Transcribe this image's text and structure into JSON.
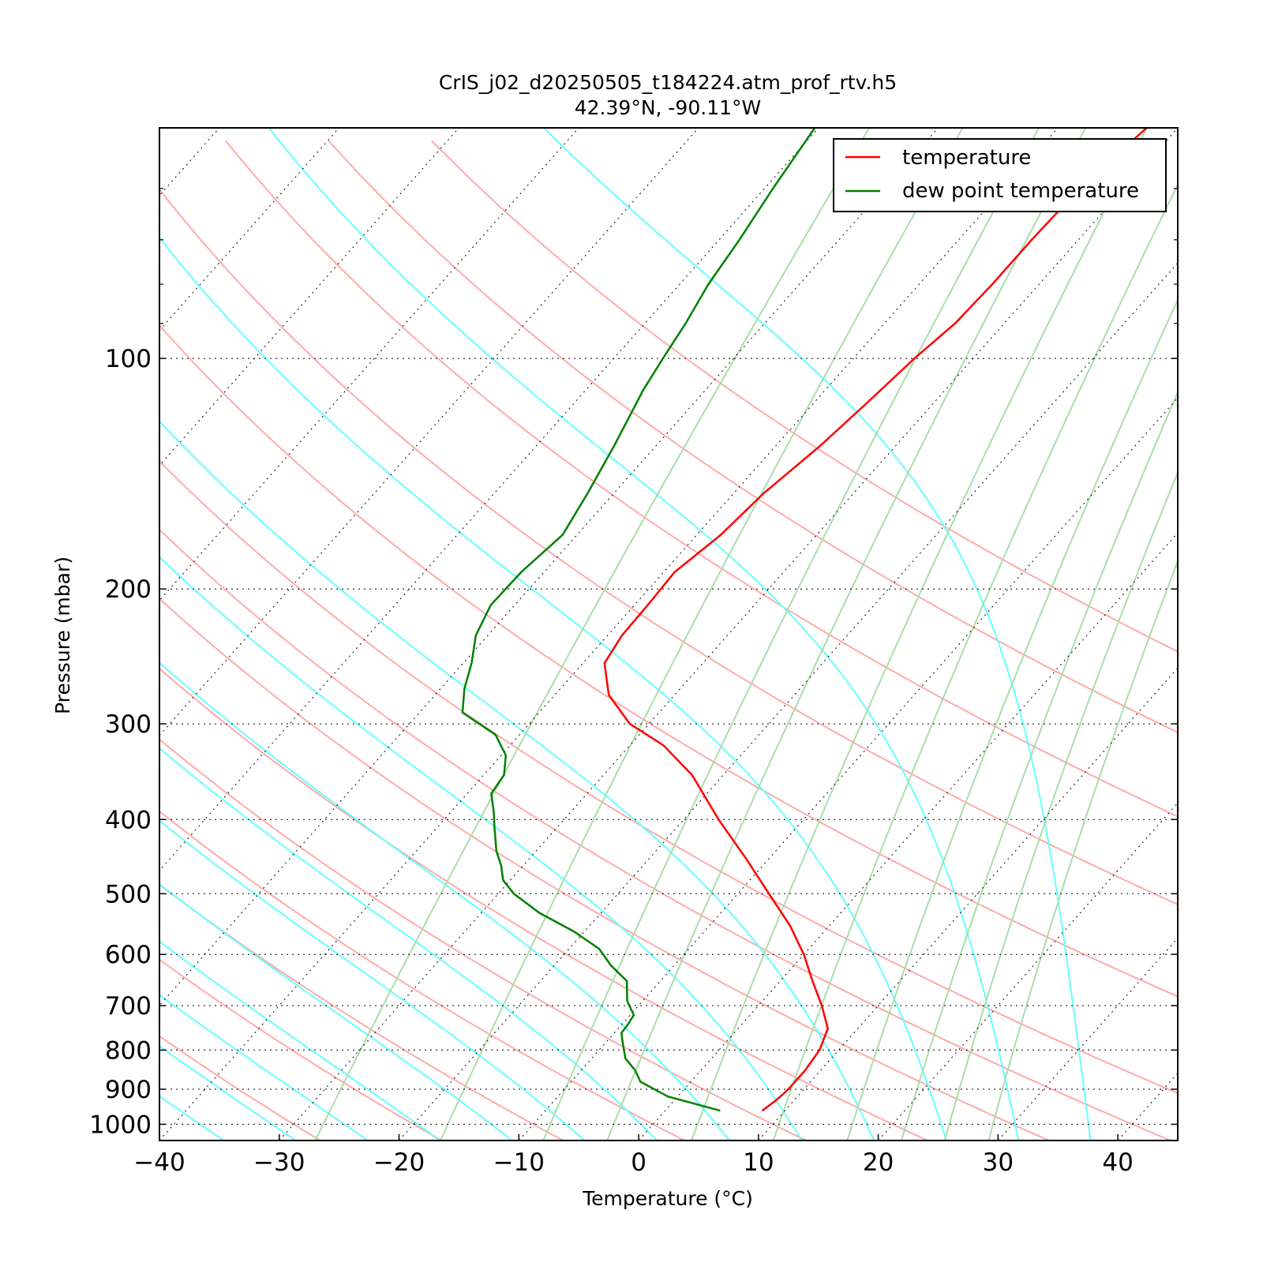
{
  "chart_data": {
    "type": "line",
    "title": "CrIS_j02_d20250505_t184224.atm_prof_rtv.h5",
    "subtitle": "42.39°N, -90.11°W",
    "xlabel": "Temperature (°C)",
    "ylabel": "Pressure (mbar)",
    "xlim": [
      -40,
      45
    ],
    "ylim": [
      1050,
      50
    ],
    "y_scale": "log",
    "skew": "skew-T log-P",
    "x_ticks": [
      "−40",
      "−30",
      "−20",
      "−10",
      "0",
      "10",
      "20",
      "30",
      "40"
    ],
    "x_tick_values": [
      -40,
      -30,
      -20,
      -10,
      0,
      10,
      20,
      30,
      40
    ],
    "y_ticks": [
      "100",
      "200",
      "300",
      "400",
      "500",
      "600",
      "700",
      "800",
      "900",
      "1000"
    ],
    "y_tick_values": [
      100,
      200,
      300,
      400,
      500,
      600,
      700,
      800,
      900,
      1000
    ],
    "grid": true,
    "legend_position": "top-right",
    "series": [
      {
        "name": "temperature",
        "color": "#ff0000",
        "points": [
          [
            960,
            8.1
          ],
          [
            930,
            8.5
          ],
          [
            900,
            8.7
          ],
          [
            850,
            8.7
          ],
          [
            800,
            8.4
          ],
          [
            750,
            7.5
          ],
          [
            700,
            5.3
          ],
          [
            650,
            2.7
          ],
          [
            600,
            0.0
          ],
          [
            550,
            -3.3
          ],
          [
            500,
            -7.4
          ],
          [
            450,
            -11.9
          ],
          [
            400,
            -17.1
          ],
          [
            350,
            -22.6
          ],
          [
            320,
            -27.2
          ],
          [
            300,
            -31.6
          ],
          [
            275,
            -35.5
          ],
          [
            250,
            -38.2
          ],
          [
            230,
            -38.8
          ],
          [
            210,
            -38.9
          ],
          [
            190,
            -39.1
          ],
          [
            170,
            -38.0
          ],
          [
            150,
            -37.5
          ],
          [
            130,
            -36.3
          ],
          [
            115,
            -35.6
          ],
          [
            100,
            -34.9
          ],
          [
            90,
            -34.1
          ],
          [
            80,
            -33.9
          ],
          [
            70,
            -33.9
          ],
          [
            60,
            -33.7
          ],
          [
            50,
            -32.6
          ]
        ]
      },
      {
        "name": "dew point temperature",
        "color": "#008000",
        "points": [
          [
            960,
            4.6
          ],
          [
            920,
            -0.8
          ],
          [
            880,
            -4.2
          ],
          [
            850,
            -5.5
          ],
          [
            820,
            -7.2
          ],
          [
            790,
            -8.3
          ],
          [
            760,
            -9.4
          ],
          [
            740,
            -9.5
          ],
          [
            720,
            -9.7
          ],
          [
            690,
            -11.3
          ],
          [
            650,
            -12.8
          ],
          [
            620,
            -15.3
          ],
          [
            590,
            -17.5
          ],
          [
            560,
            -20.9
          ],
          [
            530,
            -25.1
          ],
          [
            500,
            -28.7
          ],
          [
            480,
            -30.6
          ],
          [
            460,
            -31.8
          ],
          [
            440,
            -33.3
          ],
          [
            410,
            -35.2
          ],
          [
            390,
            -36.5
          ],
          [
            370,
            -38.0
          ],
          [
            350,
            -38.3
          ],
          [
            330,
            -39.6
          ],
          [
            310,
            -42.0
          ],
          [
            290,
            -46.4
          ],
          [
            270,
            -48.0
          ],
          [
            250,
            -49.3
          ],
          [
            230,
            -51.0
          ],
          [
            210,
            -52.0
          ],
          [
            190,
            -51.9
          ],
          [
            170,
            -51.2
          ],
          [
            150,
            -52.2
          ],
          [
            130,
            -53.5
          ],
          [
            110,
            -55.2
          ],
          [
            100,
            -55.9
          ],
          [
            90,
            -56.6
          ],
          [
            80,
            -57.6
          ],
          [
            70,
            -58.3
          ],
          [
            60,
            -59.3
          ],
          [
            50,
            -60.3
          ]
        ]
      }
    ],
    "background_lines": {
      "dry_adiabat_color": "#ffaaaa",
      "moist_adiabat_color": "#66ffff",
      "mixing_ratio_color": "#aaddaa",
      "isotherm_color": "#000000"
    }
  }
}
